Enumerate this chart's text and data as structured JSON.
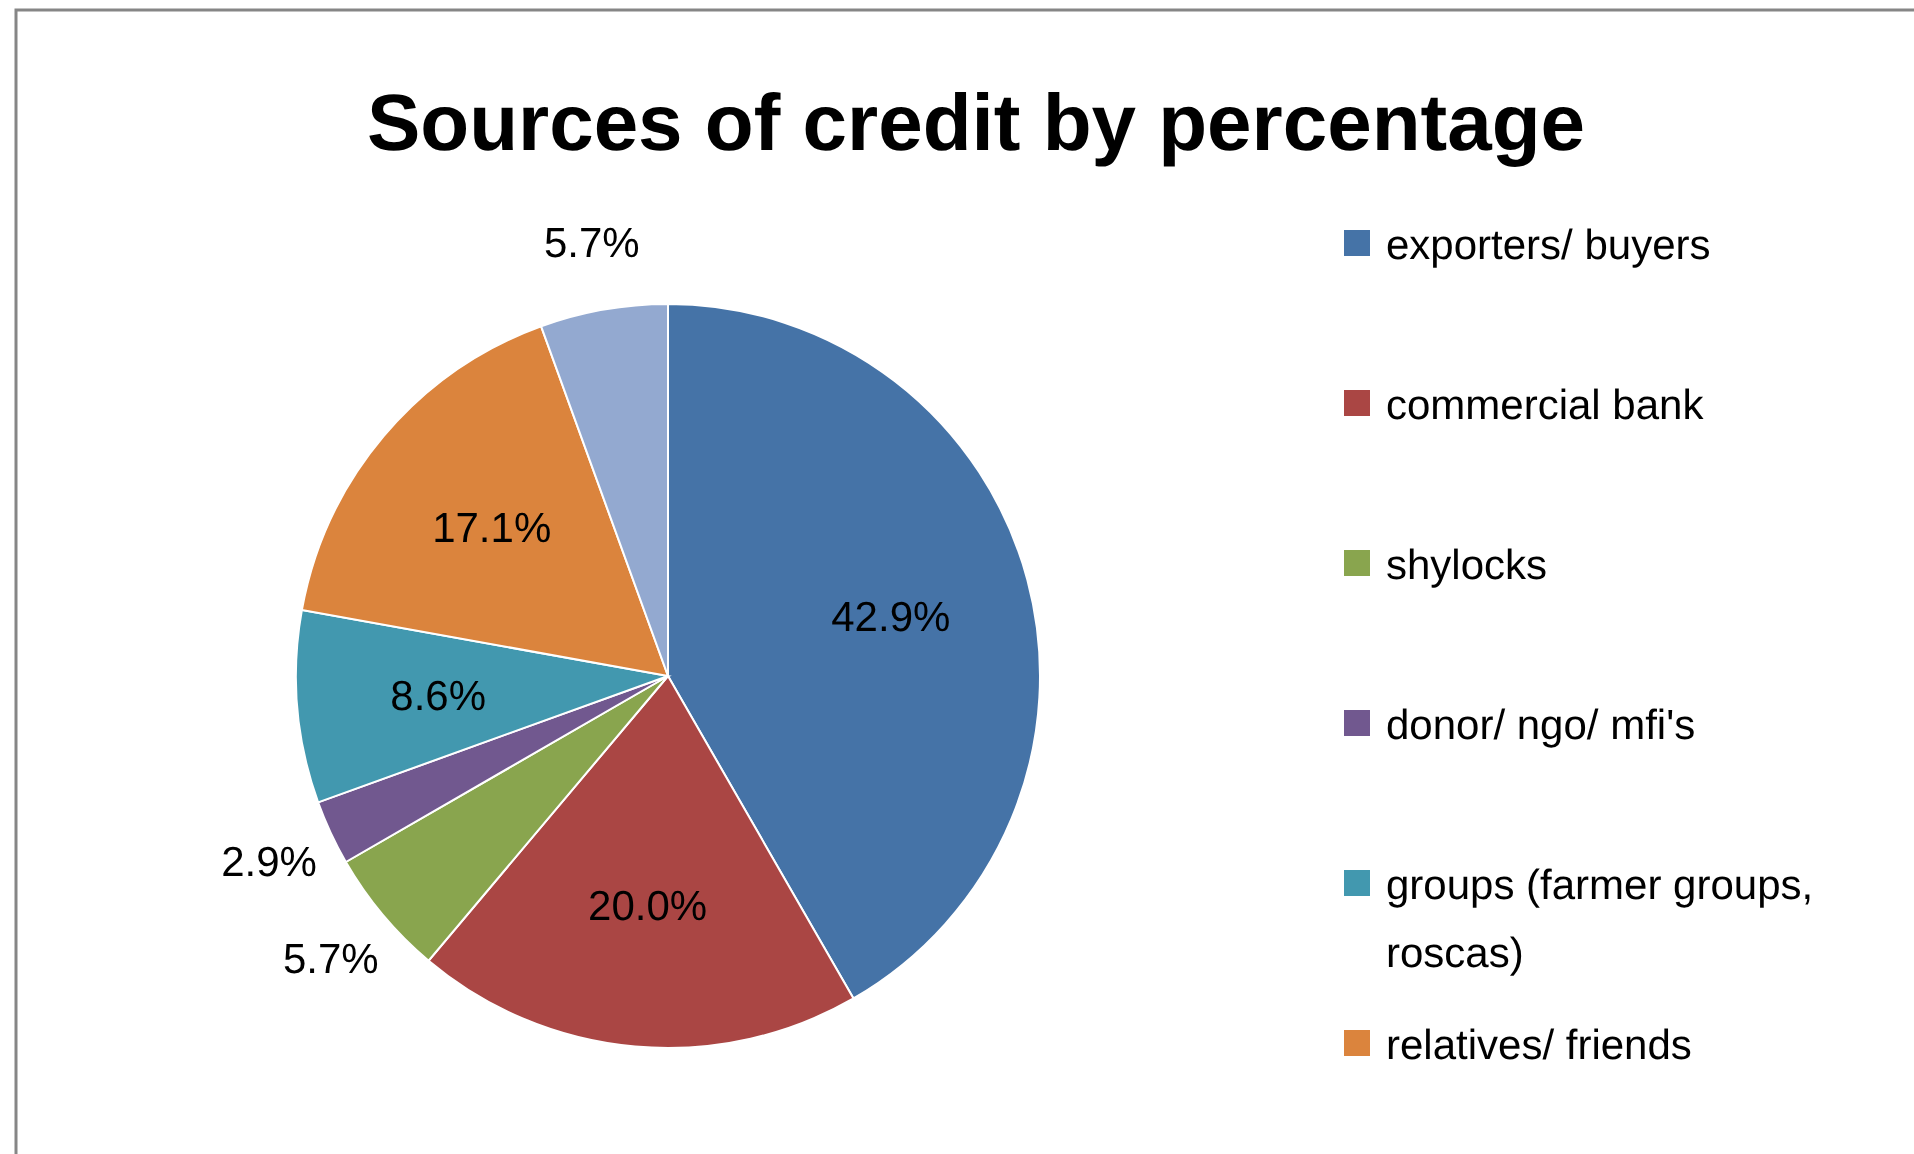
{
  "chart_data": {
    "type": "pie",
    "title": "Sources of credit by percentage",
    "categories": [
      "exporters/ buyers",
      "commercial bank",
      "shylocks",
      "donor/ ngo/ mfi's",
      "groups (farmer groups, roscas)",
      "relatives/ friends",
      null
    ],
    "values": [
      42.9,
      20.0,
      5.7,
      2.9,
      8.6,
      17.1,
      5.7
    ],
    "value_labels": [
      "42.9%",
      "20.0%",
      "5.7%",
      "2.9%",
      "8.6%",
      "17.1%",
      "5.7%"
    ],
    "colors": [
      "#4573a7",
      "#aa4644",
      "#89a54e",
      "#71588f",
      "#4298af",
      "#db843d",
      "#93a9d0"
    ],
    "legend": "right"
  }
}
